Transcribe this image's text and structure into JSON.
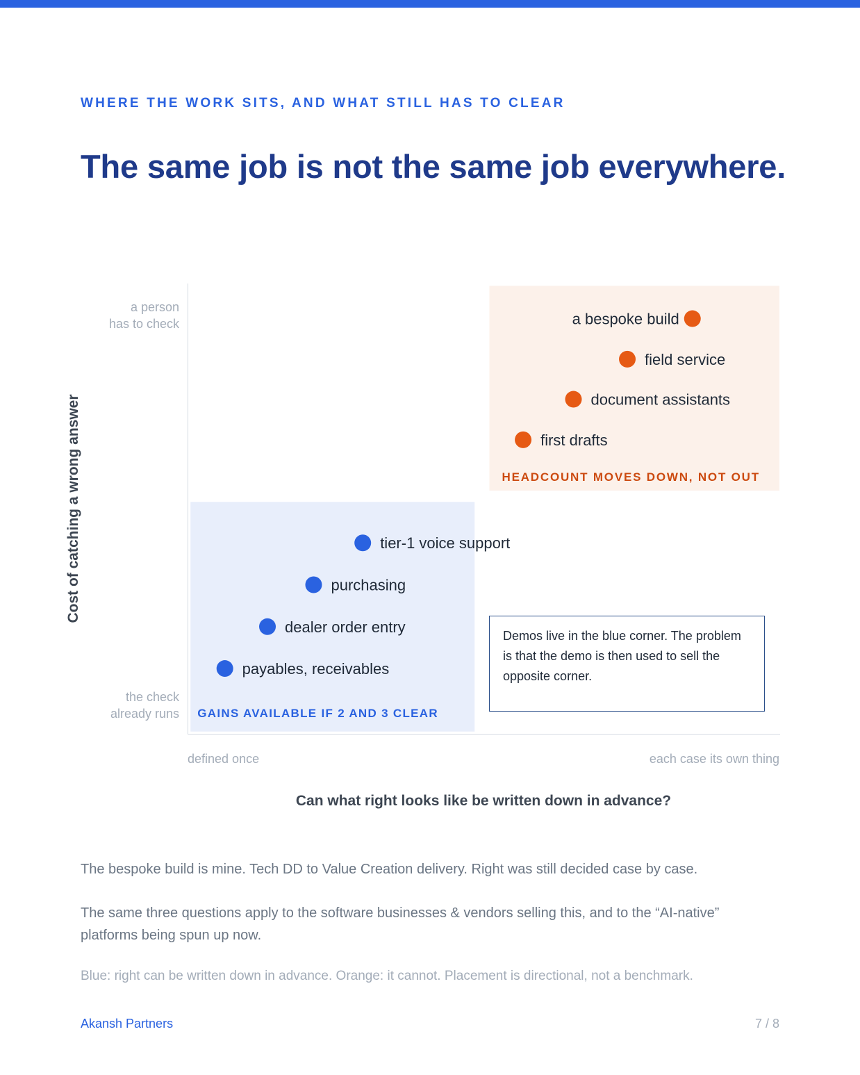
{
  "header": {
    "kicker": "WHERE THE WORK SITS, AND WHAT STILL HAS TO CLEAR",
    "title": "The same job is not the same job everywhere."
  },
  "chart_data": {
    "type": "scatter",
    "title": "",
    "xlabel": "Can what right looks like be written down in advance?",
    "ylabel": "Cost of catching a wrong answer",
    "xlim": [
      0,
      100
    ],
    "ylim": [
      0,
      100
    ],
    "x_tick_labels": {
      "low": "defined once",
      "high": "each case its own thing"
    },
    "y_tick_labels": {
      "low_line1": "the check",
      "low_line2": "already runs",
      "high_line1": "a person",
      "high_line2": "has to check"
    },
    "grid": false,
    "legend": "none",
    "colors": {
      "blue": "#2a62e0",
      "orange": "#e65a14",
      "blue_zone": "#e8eefb",
      "orange_zone": "#fcf1ea"
    },
    "zones": [
      {
        "name": "GAINS AVAILABLE IF 2 AND 3 CLEAR",
        "color": "blue",
        "x": [
          0.5,
          48.5
        ],
        "y": [
          0.5,
          51.5
        ]
      },
      {
        "name": "HEADCOUNT MOVES DOWN, NOT OUT",
        "color": "orange",
        "x": [
          51,
          100
        ],
        "y": [
          54,
          99.5
        ]
      }
    ],
    "series": [
      {
        "color": "blue",
        "points": [
          {
            "label": "payables, receivables",
            "x": 6.3,
            "y": 14.5
          },
          {
            "label": "dealer order entry",
            "x": 13.5,
            "y": 23.8
          },
          {
            "label": "purchasing",
            "x": 21.3,
            "y": 33.1
          },
          {
            "label": "tier-1 voice support",
            "x": 29.6,
            "y": 42.4
          }
        ]
      },
      {
        "color": "orange",
        "points": [
          {
            "label": "first drafts",
            "x": 56.7,
            "y": 65.3
          },
          {
            "label": "document assistants",
            "x": 65.2,
            "y": 74.3
          },
          {
            "label": "field service",
            "x": 74.3,
            "y": 83.2
          },
          {
            "label": "a bespoke build",
            "x": 85.3,
            "y": 92.2,
            "label_side": "left"
          }
        ]
      }
    ],
    "annotation": "Demos live in the blue corner. The problem is that the demo is then used to sell the opposite corner."
  },
  "body": {
    "p1": "The bespoke build is mine. Tech DD to Value Creation delivery. Right was still decided case by case.",
    "p2": "The same three questions apply to the software businesses & vendors selling this, and to the “AI-native” platforms being spun up now.",
    "footnote": "Blue: right can be written down in advance. Orange: it cannot. Placement is directional, not a benchmark."
  },
  "footer": {
    "brand": "Akansh Partners",
    "page": "7 / 8"
  }
}
